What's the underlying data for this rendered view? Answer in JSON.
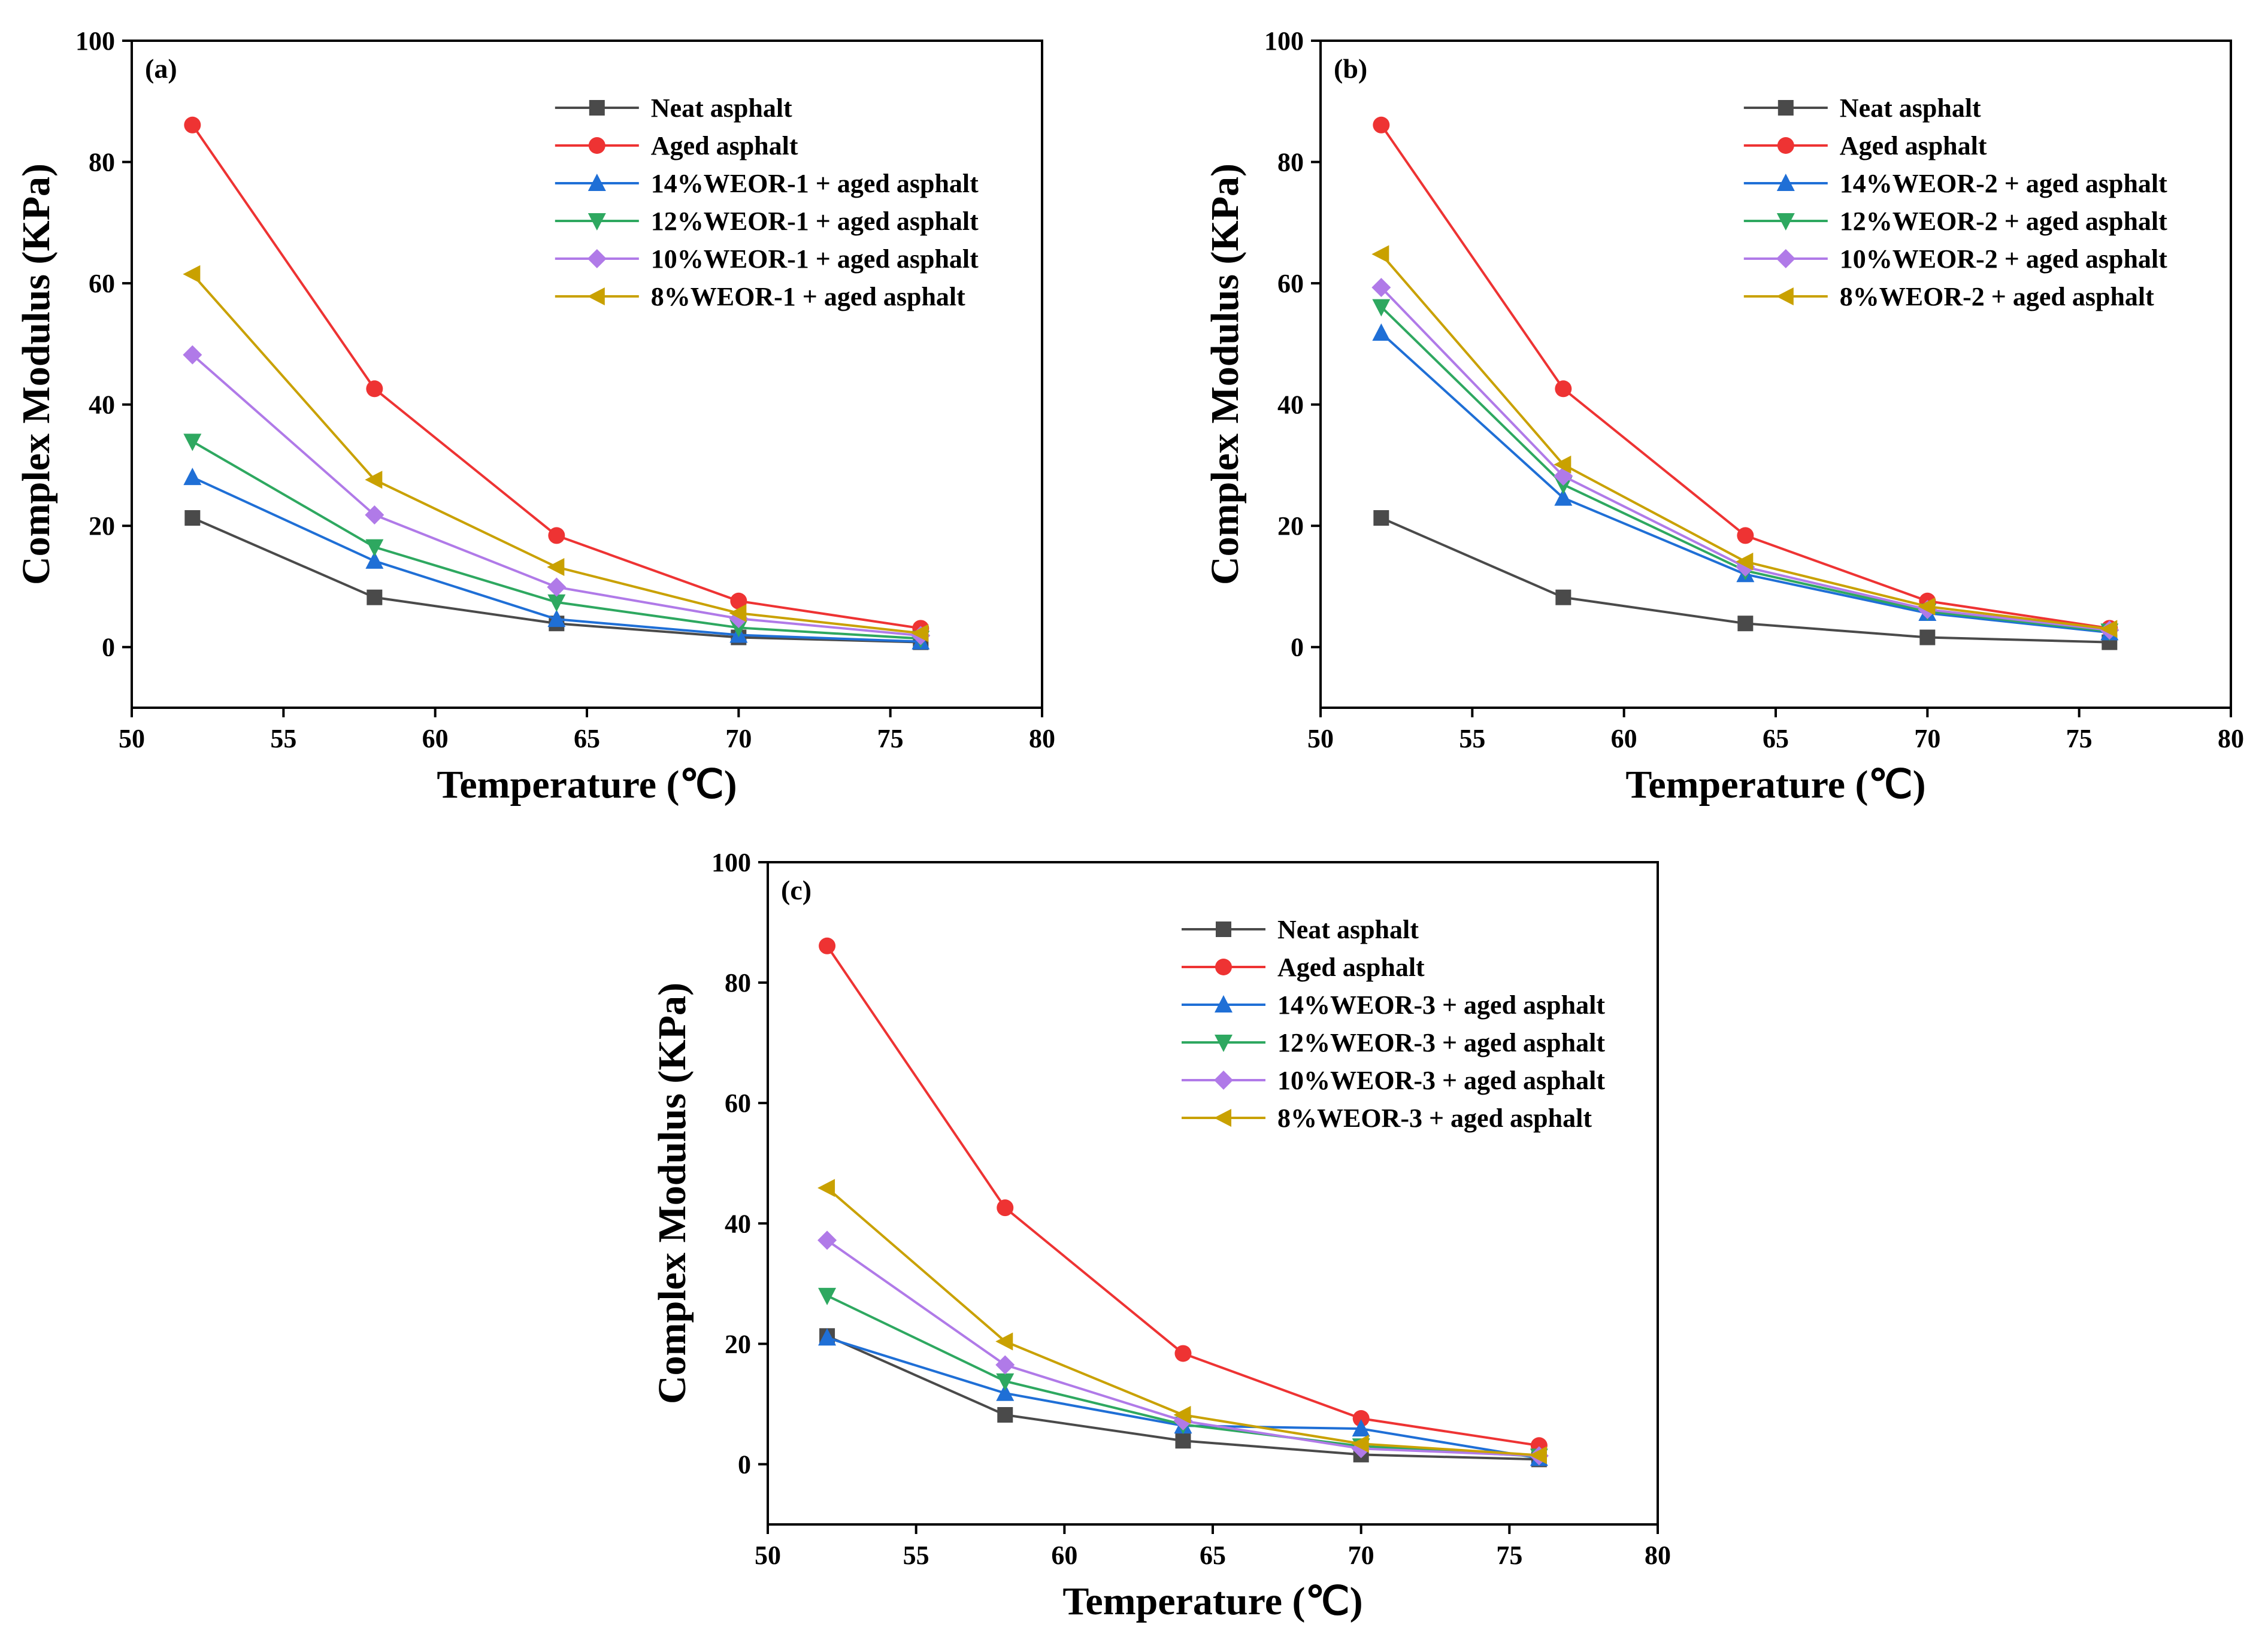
{
  "chart_data": [
    {
      "type": "line",
      "panel_label": "(a)",
      "xlabel": "Temperature (℃)",
      "ylabel": "Complex Modulus (KPa)",
      "xlim": [
        50,
        80
      ],
      "ylim": [
        -10,
        100
      ],
      "xticks": [
        50,
        55,
        60,
        65,
        70,
        75,
        80
      ],
      "yticks": [
        0,
        20,
        40,
        60,
        80,
        100
      ],
      "legend_position": "top-right",
      "grid": false,
      "x": [
        52,
        58,
        64,
        70,
        76
      ],
      "series": [
        {
          "name": "Neat asphalt",
          "color": "#4a4a4a",
          "marker": "square",
          "values": [
            21.3,
            8.2,
            3.9,
            1.6,
            0.8
          ]
        },
        {
          "name": "Aged asphalt",
          "color": "#ee3333",
          "marker": "circle",
          "values": [
            86.1,
            42.6,
            18.4,
            7.6,
            3.1
          ]
        },
        {
          "name": "14%WEOR-1 + aged asphalt",
          "color": "#1f6fd6",
          "marker": "triangle-up",
          "values": [
            28.0,
            14.2,
            4.6,
            2.0,
            0.9
          ]
        },
        {
          "name": "12%WEOR-1 + aged asphalt",
          "color": "#2ea860",
          "marker": "triangle-down",
          "values": [
            33.9,
            16.5,
            7.4,
            3.2,
            1.4
          ]
        },
        {
          "name": "10%WEOR-1 + aged asphalt",
          "color": "#b07ae8",
          "marker": "diamond",
          "values": [
            48.2,
            21.8,
            9.9,
            4.7,
            1.9
          ]
        },
        {
          "name": "8%WEOR-1 + aged asphalt",
          "color": "#c9a100",
          "marker": "triangle-left",
          "values": [
            61.5,
            27.6,
            13.2,
            5.6,
            2.3
          ]
        }
      ]
    },
    {
      "type": "line",
      "panel_label": "(b)",
      "xlabel": "Temperature (℃)",
      "ylabel": "Complex Modulus (KPa)",
      "xlim": [
        50,
        80
      ],
      "ylim": [
        -10,
        100
      ],
      "xticks": [
        50,
        55,
        60,
        65,
        70,
        75,
        80
      ],
      "yticks": [
        0,
        20,
        40,
        60,
        80,
        100
      ],
      "legend_position": "top-right",
      "grid": false,
      "x": [
        52,
        58,
        64,
        70,
        76
      ],
      "series": [
        {
          "name": "Neat asphalt",
          "color": "#4a4a4a",
          "marker": "square",
          "values": [
            21.3,
            8.2,
            3.9,
            1.6,
            0.8
          ]
        },
        {
          "name": "Aged asphalt",
          "color": "#ee3333",
          "marker": "circle",
          "values": [
            86.1,
            42.6,
            18.4,
            7.6,
            3.1
          ]
        },
        {
          "name": "14%WEOR-2 + aged asphalt",
          "color": "#1f6fd6",
          "marker": "triangle-up",
          "values": [
            51.8,
            24.6,
            12.0,
            5.6,
            2.4
          ]
        },
        {
          "name": "12%WEOR-2 + aged asphalt",
          "color": "#2ea860",
          "marker": "triangle-down",
          "values": [
            56.1,
            26.8,
            12.6,
            5.9,
            2.6
          ]
        },
        {
          "name": "10%WEOR-2 + aged asphalt",
          "color": "#b07ae8",
          "marker": "diamond",
          "values": [
            59.3,
            28.2,
            13.2,
            6.2,
            2.8
          ]
        },
        {
          "name": "8%WEOR-2 + aged asphalt",
          "color": "#c9a100",
          "marker": "triangle-left",
          "values": [
            64.8,
            30.1,
            14.1,
            6.7,
            3.0
          ]
        }
      ]
    },
    {
      "type": "line",
      "panel_label": "(c)",
      "xlabel": "Temperature (℃)",
      "ylabel": "Complex Modulus (KPa)",
      "xlim": [
        50,
        80
      ],
      "ylim": [
        -10,
        100
      ],
      "xticks": [
        50,
        55,
        60,
        65,
        70,
        75,
        80
      ],
      "yticks": [
        0,
        20,
        40,
        60,
        80,
        100
      ],
      "legend_position": "top-right",
      "grid": false,
      "x": [
        52,
        58,
        64,
        70,
        76
      ],
      "series": [
        {
          "name": "Neat asphalt",
          "color": "#4a4a4a",
          "marker": "square",
          "values": [
            21.3,
            8.2,
            3.9,
            1.6,
            0.8
          ]
        },
        {
          "name": "Aged asphalt",
          "color": "#ee3333",
          "marker": "circle",
          "values": [
            86.1,
            42.6,
            18.4,
            7.6,
            3.1
          ]
        },
        {
          "name": "14%WEOR-3 + aged asphalt",
          "color": "#1f6fd6",
          "marker": "triangle-up",
          "values": [
            21.0,
            11.8,
            6.4,
            5.9,
            1.0
          ]
        },
        {
          "name": "12%WEOR-3 + aged asphalt",
          "color": "#2ea860",
          "marker": "triangle-down",
          "values": [
            28.0,
            13.8,
            6.6,
            3.0,
            1.3
          ]
        },
        {
          "name": "10%WEOR-3 + aged asphalt",
          "color": "#b07ae8",
          "marker": "diamond",
          "values": [
            37.2,
            16.5,
            7.2,
            2.6,
            1.4
          ]
        },
        {
          "name": "8%WEOR-3 + aged asphalt",
          "color": "#c9a100",
          "marker": "triangle-left",
          "values": [
            45.9,
            20.4,
            8.2,
            3.4,
            1.5
          ]
        }
      ]
    }
  ]
}
